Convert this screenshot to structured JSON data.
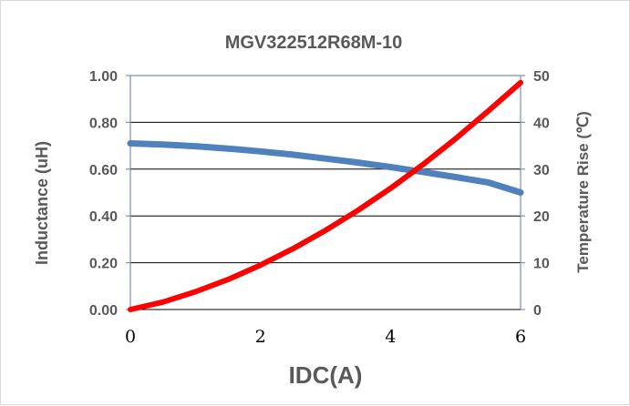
{
  "chart_data": {
    "type": "line",
    "title": "MGV322512R68M-10",
    "xlabel": "IDC(A)",
    "ylabel": "Inductance (uH)",
    "y2label": "Temperature Rise (℃)",
    "xlim": [
      0,
      6
    ],
    "ylim": [
      0,
      1
    ],
    "y2lim": [
      0,
      50
    ],
    "x_ticks": [
      "0",
      "2",
      "4",
      "6"
    ],
    "y_ticks": [
      "0.00",
      "0.20",
      "0.40",
      "0.60",
      "0.80",
      "1.00"
    ],
    "y2_ticks": [
      "0",
      "10",
      "20",
      "30",
      "40",
      "50"
    ],
    "grid": true,
    "series": [
      {
        "axis": "left",
        "color": "#4f81bd",
        "x": [
          0,
          0.5,
          1,
          1.5,
          2,
          2.5,
          3,
          3.5,
          4,
          4.5,
          5,
          5.5,
          6
        ],
        "values": [
          0.71,
          0.705,
          0.698,
          0.688,
          0.676,
          0.662,
          0.645,
          0.628,
          0.609,
          0.588,
          0.566,
          0.543,
          0.5
        ]
      },
      {
        "axis": "right",
        "color": "#ff0000",
        "x": [
          0,
          0.5,
          1,
          1.5,
          2,
          2.5,
          3,
          3.5,
          4,
          4.5,
          5,
          5.5,
          6
        ],
        "values": [
          0,
          1.6,
          3.8,
          6.4,
          9.5,
          13.0,
          16.9,
          21.2,
          25.9,
          31.0,
          36.5,
          42.4,
          48.5
        ]
      }
    ]
  }
}
